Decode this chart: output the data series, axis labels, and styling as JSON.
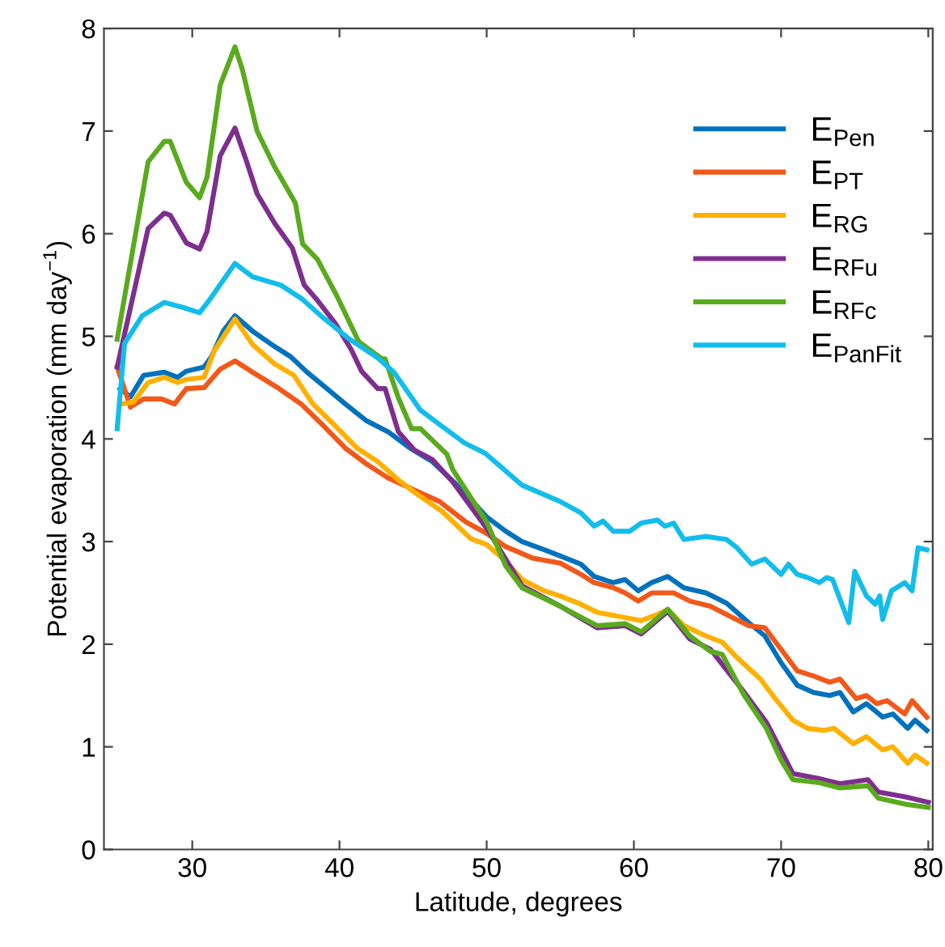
{
  "chart_data": {
    "type": "line",
    "xlabel": "Latitude, degrees",
    "ylabel": "Potential evaporation (mm day$^{−1}$)",
    "xlim": [
      24,
      80.3
    ],
    "ylim": [
      0,
      8
    ],
    "xticks": [
      30,
      40,
      50,
      60,
      70,
      80
    ],
    "yticks": [
      0,
      1,
      2,
      3,
      4,
      5,
      6,
      7,
      8
    ],
    "grid": false,
    "legend": "top right",
    "line_style": "solid",
    "marker": "none",
    "series": [
      {
        "name": "E$_{Pen}$",
        "color": "#0072BD",
        "x": [
          25.1,
          25.8,
          26.7,
          28.1,
          29.0,
          29.6,
          30.8,
          31.3,
          32.1,
          32.9,
          34.1,
          35.6,
          36.7,
          37.8,
          38.9,
          40.4,
          41.8,
          43.3,
          44.8,
          46.3,
          48.0,
          50.0,
          51.3,
          52.4,
          53.9,
          55.0,
          56.4,
          57.3,
          58.6,
          59.4,
          60.3,
          61.2,
          62.3,
          63.4,
          64.9,
          66.3,
          67.8,
          68.9,
          70.0,
          71.1,
          72.2,
          73.3,
          74.0,
          74.9,
          75.8,
          76.9,
          77.6,
          78.6,
          79.1,
          79.9
        ],
        "values": [
          4.49,
          4.41,
          4.62,
          4.65,
          4.6,
          4.66,
          4.7,
          4.8,
          5.05,
          5.2,
          5.05,
          4.9,
          4.8,
          4.65,
          4.52,
          4.34,
          4.18,
          4.07,
          3.91,
          3.78,
          3.55,
          3.24,
          3.1,
          3.0,
          2.92,
          2.86,
          2.78,
          2.66,
          2.6,
          2.63,
          2.52,
          2.6,
          2.66,
          2.55,
          2.5,
          2.4,
          2.21,
          2.08,
          1.82,
          1.6,
          1.53,
          1.5,
          1.53,
          1.34,
          1.42,
          1.29,
          1.32,
          1.18,
          1.26,
          1.16
        ]
      },
      {
        "name": "E$_{PT}$",
        "color": "#F2581A",
        "x": [
          24.9,
          25.8,
          26.7,
          27.9,
          28.8,
          29.6,
          30.8,
          31.9,
          32.9,
          34.1,
          35.9,
          37.4,
          38.9,
          40.4,
          41.8,
          43.3,
          43.9,
          46.8,
          48.6,
          50.0,
          51.3,
          53.1,
          55.0,
          56.4,
          57.3,
          58.6,
          59.4,
          60.3,
          61.2,
          62.7,
          63.8,
          65.2,
          66.7,
          67.8,
          68.9,
          70.0,
          71.1,
          72.2,
          73.3,
          74.0,
          75.1,
          75.8,
          76.5,
          77.2,
          78.4,
          78.9,
          79.9
        ],
        "values": [
          4.7,
          4.31,
          4.39,
          4.39,
          4.34,
          4.49,
          4.5,
          4.68,
          4.76,
          4.65,
          4.49,
          4.34,
          4.13,
          3.91,
          3.76,
          3.62,
          3.58,
          3.39,
          3.19,
          3.08,
          2.95,
          2.84,
          2.79,
          2.68,
          2.6,
          2.55,
          2.5,
          2.42,
          2.5,
          2.5,
          2.42,
          2.37,
          2.26,
          2.18,
          2.16,
          1.95,
          1.74,
          1.69,
          1.63,
          1.66,
          1.47,
          1.5,
          1.42,
          1.45,
          1.32,
          1.45,
          1.29
        ]
      },
      {
        "name": "E$_{RG}$",
        "color": "#FFB000",
        "x": [
          25.1,
          26.0,
          27.0,
          28.1,
          29.0,
          29.6,
          30.8,
          31.5,
          32.9,
          34.1,
          35.6,
          36.9,
          38.2,
          39.7,
          41.2,
          42.6,
          44.0,
          45.1,
          47.0,
          48.9,
          50.0,
          51.3,
          52.4,
          53.9,
          55.0,
          56.4,
          57.5,
          59.4,
          60.5,
          61.6,
          62.3,
          63.4,
          64.9,
          66.0,
          67.0,
          68.6,
          69.6,
          70.8,
          71.8,
          72.9,
          73.6,
          74.9,
          75.8,
          76.9,
          77.6,
          78.6,
          79.1,
          79.9
        ],
        "values": [
          4.34,
          4.36,
          4.55,
          4.6,
          4.55,
          4.58,
          4.6,
          4.86,
          5.17,
          4.92,
          4.73,
          4.62,
          4.34,
          4.13,
          3.91,
          3.78,
          3.6,
          3.48,
          3.29,
          3.03,
          2.97,
          2.81,
          2.63,
          2.52,
          2.47,
          2.39,
          2.31,
          2.26,
          2.23,
          2.29,
          2.34,
          2.18,
          2.08,
          2.02,
          1.87,
          1.66,
          1.47,
          1.26,
          1.18,
          1.16,
          1.18,
          1.03,
          1.1,
          0.97,
          1.0,
          0.84,
          0.92,
          0.84
        ]
      },
      {
        "name": "E$_{RFu}$",
        "color": "#7E2F8E",
        "x": [
          24.9,
          27.0,
          28.1,
          28.5,
          29.6,
          30.5,
          31.0,
          31.9,
          32.9,
          33.7,
          34.4,
          35.6,
          36.8,
          37.6,
          38.5,
          39.7,
          40.8,
          41.5,
          42.6,
          43.1,
          44.0,
          45.1,
          46.3,
          47.7,
          50.0,
          52.4,
          55.0,
          57.5,
          59.4,
          60.5,
          62.3,
          63.8,
          65.2,
          67.5,
          69.0,
          70.8,
          72.6,
          74.0,
          75.9,
          76.6,
          78.5,
          80.0
        ],
        "values": [
          4.7,
          6.05,
          6.2,
          6.18,
          5.91,
          5.85,
          6.02,
          6.76,
          7.03,
          6.7,
          6.39,
          6.1,
          5.86,
          5.5,
          5.35,
          5.13,
          4.87,
          4.66,
          4.49,
          4.49,
          4.07,
          3.89,
          3.8,
          3.58,
          3.13,
          2.57,
          2.37,
          2.16,
          2.18,
          2.1,
          2.32,
          2.05,
          1.95,
          1.53,
          1.24,
          0.74,
          0.69,
          0.64,
          0.68,
          0.56,
          0.51,
          0.46
        ]
      },
      {
        "name": "E$_{RFc}$",
        "color": "#5AAA1E",
        "x": [
          24.9,
          27.0,
          28.1,
          28.5,
          29.6,
          30.5,
          31.0,
          31.9,
          32.9,
          33.4,
          34.4,
          35.6,
          37.0,
          37.5,
          38.5,
          39.8,
          41.3,
          42.9,
          43.1,
          44.0,
          44.9,
          45.5,
          47.3,
          47.7,
          50.0,
          51.3,
          52.4,
          55.0,
          57.5,
          59.4,
          60.5,
          62.3,
          63.8,
          65.2,
          66.0,
          67.5,
          69.0,
          70.0,
          70.8,
          72.6,
          74.0,
          75.9,
          76.6,
          78.5,
          80.0
        ],
        "values": [
          4.97,
          6.7,
          6.9,
          6.9,
          6.5,
          6.35,
          6.55,
          7.45,
          7.82,
          7.6,
          7.0,
          6.65,
          6.3,
          5.9,
          5.75,
          5.4,
          4.95,
          4.78,
          4.78,
          4.4,
          4.1,
          4.1,
          3.85,
          3.7,
          3.19,
          2.76,
          2.55,
          2.37,
          2.18,
          2.2,
          2.12,
          2.34,
          2.08,
          1.93,
          1.9,
          1.5,
          1.18,
          0.87,
          0.68,
          0.65,
          0.6,
          0.62,
          0.5,
          0.44,
          0.41
        ]
      },
      {
        "name": "E$_{PanFit}$",
        "color": "#12BDEB",
        "x": [
          24.9,
          25.4,
          26.6,
          28.1,
          29.4,
          30.5,
          31.2,
          32.9,
          34.1,
          36.0,
          37.4,
          38.9,
          40.7,
          42.6,
          43.7,
          45.5,
          47.0,
          48.5,
          49.9,
          52.4,
          55.0,
          56.4,
          57.3,
          57.9,
          58.6,
          59.7,
          60.5,
          61.6,
          62.1,
          62.7,
          63.4,
          64.9,
          66.3,
          67.0,
          68.0,
          68.9,
          70.0,
          70.5,
          71.1,
          71.8,
          72.6,
          73.1,
          73.5,
          74.6,
          75.0,
          75.8,
          76.4,
          76.7,
          76.9,
          77.5,
          78.4,
          78.9,
          79.3,
          79.9
        ],
        "values": [
          4.1,
          4.93,
          5.2,
          5.33,
          5.28,
          5.23,
          5.36,
          5.71,
          5.58,
          5.5,
          5.37,
          5.18,
          4.97,
          4.79,
          4.65,
          4.28,
          4.12,
          3.96,
          3.86,
          3.55,
          3.39,
          3.28,
          3.15,
          3.2,
          3.1,
          3.1,
          3.18,
          3.21,
          3.15,
          3.18,
          3.02,
          3.05,
          3.02,
          2.94,
          2.78,
          2.83,
          2.68,
          2.78,
          2.68,
          2.65,
          2.6,
          2.65,
          2.63,
          2.21,
          2.71,
          2.47,
          2.39,
          2.47,
          2.24,
          2.52,
          2.6,
          2.52,
          2.94,
          2.92
        ]
      }
    ]
  }
}
